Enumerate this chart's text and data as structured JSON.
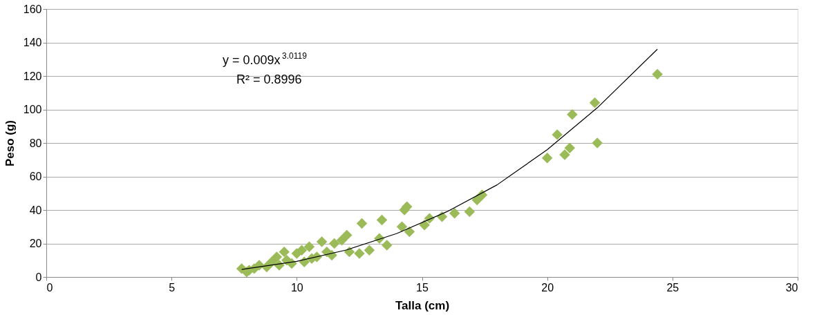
{
  "chart_data": {
    "type": "scatter",
    "xlabel": "Talla (cm)",
    "ylabel": "Peso (g)",
    "xlim": [
      0,
      30
    ],
    "xticks": [
      0,
      5,
      10,
      15,
      20,
      25,
      30
    ],
    "ylim": [
      0,
      160
    ],
    "yticks": [
      0,
      20,
      40,
      60,
      80,
      100,
      120,
      140,
      160
    ],
    "grid": "y",
    "legend": false,
    "annotations": [
      "y = 0.009x$^{3.0119}$",
      "R² = 0.8996"
    ],
    "series": [
      {
        "type": "scatter",
        "color": "#9bbb59",
        "marker": "diamond",
        "x": [
          7.8,
          8.0,
          8.1,
          8.3,
          8.5,
          8.8,
          9.0,
          9.2,
          9.3,
          9.5,
          9.6,
          9.8,
          10.0,
          10.2,
          10.3,
          10.5,
          10.6,
          10.8,
          11.0,
          11.2,
          11.4,
          11.5,
          11.8,
          12.0,
          12.1,
          12.5,
          12.6,
          12.9,
          13.3,
          13.4,
          13.6,
          14.2,
          14.3,
          14.4,
          14.5,
          15.1,
          15.3,
          15.8,
          16.3,
          16.9,
          17.2,
          17.4,
          20.0,
          20.4,
          20.7,
          20.9,
          21.0,
          21.9,
          22.0,
          24.4
        ],
        "values": [
          5,
          3,
          4,
          5,
          7,
          6,
          9,
          12,
          7,
          15,
          10,
          8,
          14,
          16,
          9,
          18,
          11,
          12,
          21,
          15,
          13,
          20,
          22,
          25,
          15,
          14,
          32,
          16,
          23,
          34,
          19,
          30,
          40,
          42,
          27,
          31,
          35,
          36,
          38,
          39,
          46,
          49,
          71,
          85,
          73,
          77,
          97,
          104,
          80,
          121
        ]
      },
      {
        "type": "line",
        "color": "#000000",
        "marker": "none",
        "line_style": "solid",
        "x": [
          7.8,
          10,
          12,
          14,
          16,
          18,
          20,
          22,
          24.4
        ],
        "values": [
          4.5,
          9.3,
          16.2,
          26,
          39,
          55,
          76,
          101,
          136
        ]
      }
    ]
  }
}
